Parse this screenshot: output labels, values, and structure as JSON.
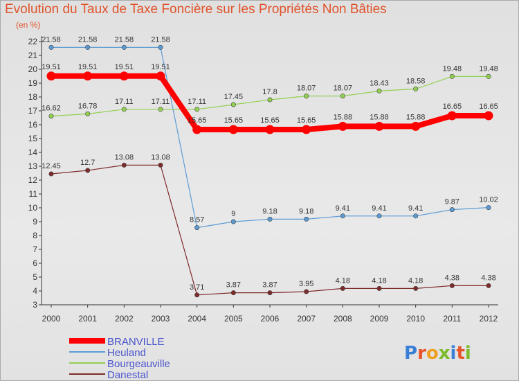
{
  "chart_data": {
    "type": "line",
    "title": "Evolution du Taux de Taxe Foncière sur les Propriétés Non Bâties",
    "ylabel": "(en %)",
    "xlabel": "",
    "ylim": [
      3,
      22
    ],
    "grid": false,
    "legend_position": "bottom-left",
    "x": [
      "2000",
      "2001",
      "2002",
      "2003",
      "2004",
      "2005",
      "2006",
      "2007",
      "2008",
      "2009",
      "2010",
      "2011",
      "2012"
    ],
    "yticks": [
      3,
      4,
      5,
      6,
      7,
      8,
      9,
      10,
      11,
      12,
      13,
      14,
      15,
      16,
      17,
      18,
      19,
      20,
      21,
      22
    ],
    "series": [
      {
        "name": "Heuland",
        "color": "#5b9bd5",
        "values": [
          21.58,
          21.58,
          21.58,
          21.58,
          8.57,
          9,
          9.18,
          9.18,
          9.41,
          9.41,
          9.41,
          9.87,
          10.02
        ],
        "labels": [
          "21.58",
          "21.58",
          "21.58",
          "21.58",
          "8.57",
          "9",
          "9.18",
          "9.18",
          "9.41",
          "9.41",
          "9.41",
          "9.87",
          "10.02"
        ]
      },
      {
        "name": "Bourgeauville",
        "color": "#92d050",
        "values": [
          16.62,
          16.78,
          17.11,
          17.11,
          17.11,
          17.45,
          17.8,
          18.07,
          18.07,
          18.43,
          18.58,
          19.48,
          19.48
        ],
        "labels": [
          "16.62",
          "16.78",
          "17.11",
          "17.11",
          "17.11",
          "17.45",
          "17.8",
          "18.07",
          "18.07",
          "18.43",
          "18.58",
          "19.48",
          "19.48"
        ]
      },
      {
        "name": "Danestal",
        "color": "#7f2a2a",
        "values": [
          12.45,
          12.7,
          13.08,
          13.08,
          3.71,
          3.87,
          3.87,
          3.95,
          4.18,
          4.18,
          4.18,
          4.38,
          4.38
        ],
        "labels": [
          "12.45",
          "12.7",
          "13.08",
          "13.08",
          "3.71",
          "3.87",
          "3.87",
          "3.95",
          "4.18",
          "4.18",
          "4.18",
          "4.38",
          "4.38"
        ]
      },
      {
        "name": "BRANVILLE",
        "color": "#ff0000",
        "values": [
          19.51,
          19.51,
          19.51,
          19.51,
          15.65,
          15.65,
          15.65,
          15.65,
          15.88,
          15.88,
          15.88,
          16.65,
          16.65
        ],
        "labels": [
          "19.51",
          "19.51",
          "19.51",
          "19.51",
          "15.65",
          "15.65",
          "15.65",
          "15.65",
          "15.88",
          "15.88",
          "15.88",
          "16.65",
          "16.65"
        ]
      }
    ],
    "legend": [
      "BRANVILLE",
      "Heuland",
      "Bourgeauville",
      "Danestal"
    ]
  },
  "logo": {
    "text": "Proxiti",
    "colors": [
      "#3a7fd5",
      "#e8542a",
      "#f0a020",
      "#7cbb2a",
      "#3a7fd5",
      "#e8542a",
      "#7cbb2a"
    ]
  }
}
